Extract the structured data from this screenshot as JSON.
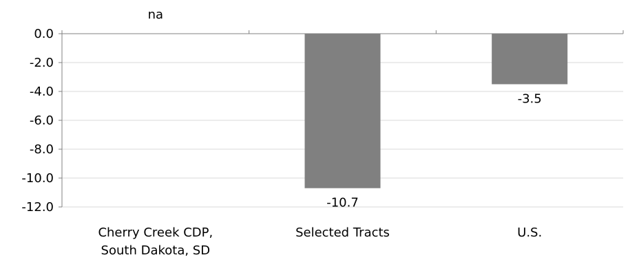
{
  "chart_data": {
    "type": "bar",
    "categories": [
      [
        "Cherry Creek CDP,",
        "South Dakota, SD"
      ],
      [
        "Selected Tracts"
      ],
      [
        "U.S."
      ]
    ],
    "values": [
      null,
      -10.7,
      -3.5
    ],
    "data_labels": [
      "na",
      "-10.7",
      "-3.5"
    ],
    "ylim": [
      -12.0,
      0.0
    ],
    "yticks": [
      0.0,
      -2.0,
      -4.0,
      -6.0,
      -8.0,
      -10.0,
      -12.0
    ],
    "ytick_labels": [
      "0.0",
      "-2.0",
      "-4.0",
      "-6.0",
      "-8.0",
      "-10.0",
      "-12.0"
    ],
    "grid": true,
    "legend": "none",
    "bar_color": "#808080",
    "grid_color": "#d9d9d9",
    "axis_color": "#808080"
  }
}
